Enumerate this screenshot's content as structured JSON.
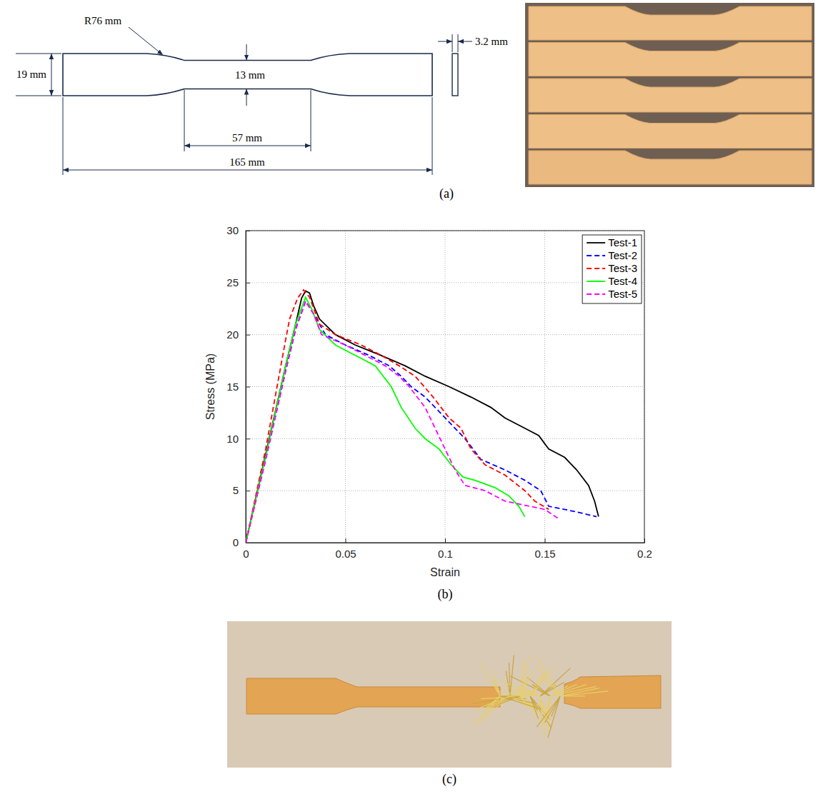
{
  "chart_data": {
    "type": "line",
    "x_label": "Strain",
    "y_label": "Stress (MPa)",
    "xlim": [
      0,
      0.2
    ],
    "xticks": [
      0,
      0.05,
      0.1,
      0.15,
      0.2
    ],
    "ylim": [
      0,
      30
    ],
    "yticks": [
      0,
      5,
      10,
      15,
      20,
      25,
      30
    ],
    "grid": true,
    "legend": "upper right",
    "series": [
      {
        "name": "Test-1",
        "color": "#000000",
        "line_style": "solid",
        "x": [
          0,
          0.01,
          0.02,
          0.025,
          0.028,
          0.03,
          0.032,
          0.034,
          0.037,
          0.045,
          0.055,
          0.068,
          0.08,
          0.09,
          0.102,
          0.113,
          0.123,
          0.13,
          0.14,
          0.147,
          0.152,
          0.16,
          0.166,
          0.172,
          0.175,
          0.177
        ],
        "values": [
          0,
          8.5,
          17,
          21,
          23.5,
          24.2,
          24,
          22.8,
          21.5,
          20,
          19,
          18,
          17,
          16,
          15,
          14,
          13,
          12,
          11,
          10.3,
          9,
          8.2,
          7,
          5.5,
          4,
          2.5
        ]
      },
      {
        "name": "Test-2",
        "color": "#0000ff",
        "line_style": "dashed",
        "x": [
          0,
          0.01,
          0.02,
          0.025,
          0.03,
          0.034,
          0.04,
          0.05,
          0.062,
          0.072,
          0.078,
          0.083,
          0.09,
          0.1,
          0.11,
          0.118,
          0.13,
          0.14,
          0.148,
          0.152,
          0.165,
          0.176
        ],
        "values": [
          0,
          8,
          16.5,
          20.5,
          23.2,
          22,
          20,
          19,
          18,
          17,
          16,
          15,
          14,
          12,
          10,
          8,
          7,
          6,
          5,
          3.5,
          3,
          2.5
        ]
      },
      {
        "name": "Test-3",
        "color": "#ff0000",
        "line_style": "dashed",
        "x": [
          0,
          0.01,
          0.02,
          0.022,
          0.026,
          0.029,
          0.032,
          0.037,
          0.045,
          0.058,
          0.068,
          0.077,
          0.085,
          0.094,
          0.102,
          0.108,
          0.113,
          0.12,
          0.13,
          0.14,
          0.145,
          0.152
        ],
        "values": [
          0,
          9,
          19.5,
          21.5,
          23.5,
          24.3,
          23.6,
          21,
          20,
          19,
          18,
          17,
          16,
          14,
          12,
          11,
          9,
          7.5,
          6.5,
          5,
          4,
          3.2
        ]
      },
      {
        "name": "Test-4",
        "color": "#00ff00",
        "line_style": "solid",
        "x": [
          0,
          0.01,
          0.02,
          0.025,
          0.03,
          0.033,
          0.037,
          0.045,
          0.055,
          0.065,
          0.073,
          0.078,
          0.085,
          0.09,
          0.097,
          0.103,
          0.109,
          0.115,
          0.125,
          0.132,
          0.137,
          0.14
        ],
        "values": [
          0,
          8.3,
          17,
          21,
          23.6,
          22.5,
          20.5,
          19,
          18,
          17,
          15,
          13,
          11,
          10,
          9,
          7.5,
          6.3,
          6,
          5.3,
          4.5,
          3.5,
          2.5
        ]
      },
      {
        "name": "Test-5",
        "color": "#ff00ff",
        "line_style": "dashed",
        "x": [
          0,
          0.01,
          0.02,
          0.025,
          0.03,
          0.034,
          0.038,
          0.05,
          0.06,
          0.07,
          0.077,
          0.082,
          0.09,
          0.095,
          0.1,
          0.105,
          0.11,
          0.12,
          0.13,
          0.14,
          0.15,
          0.157
        ],
        "values": [
          0,
          8,
          16.5,
          20.5,
          23.2,
          22,
          20,
          19,
          18,
          17,
          16,
          15,
          13,
          11,
          9,
          7,
          5.5,
          5,
          4,
          3.6,
          3.2,
          2.3
        ]
      }
    ]
  },
  "panel_labels": [
    "(a)",
    "(b)",
    "(c)"
  ],
  "specimen_drawing": {
    "radius": "R76 mm",
    "width": "19 mm",
    "gauge_width": "13 mm",
    "thickness": "3.2 mm",
    "gauge_length": "57 mm",
    "length": "165 mm"
  }
}
